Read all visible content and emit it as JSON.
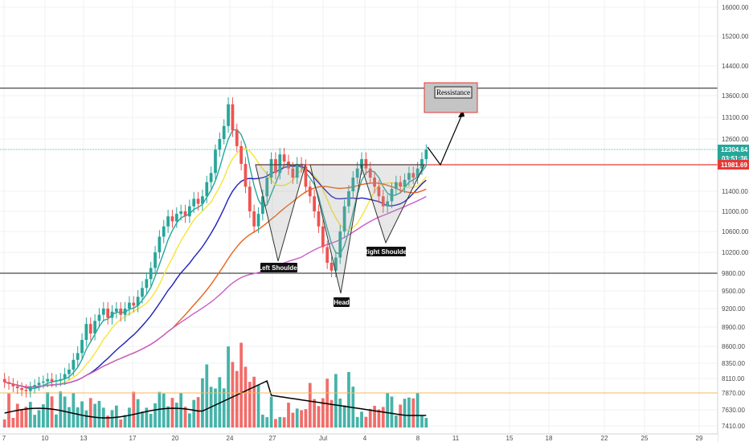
{
  "chart_data": {
    "type": "candlestick",
    "title": "",
    "y_ticks": [
      16000,
      15200,
      14400,
      13600,
      13100,
      12600,
      12304.64,
      11981.69,
      11400,
      11000,
      10600,
      10200,
      9800,
      9500,
      9200,
      8900,
      8600,
      8350,
      8110,
      7870,
      7630,
      7410
    ],
    "y_tick_labels": [
      "16000.00",
      "15200.00",
      "14400.00",
      "13600.00",
      "13100.00",
      "12600.00",
      "12304.64",
      "11981.69",
      "11400.00",
      "11000.00",
      "10600.00",
      "10200.00",
      "9800.00",
      "9500.00",
      "9200.00",
      "8900.00",
      "8600.00",
      "8350.00",
      "8110.00",
      "7870.00",
      "7630.00",
      "7410.00"
    ],
    "x_tick_labels": [
      "7",
      "10",
      "13",
      "17",
      "20",
      "24",
      "27",
      "Jul",
      "4",
      "8",
      "11",
      "15",
      "18",
      "22",
      "25",
      "29"
    ],
    "last_price": "12304.64",
    "countdown": "03:51:36",
    "resistance_price": "11981.69",
    "horizontal_levels": [
      13800,
      9800,
      7870,
      12304.64,
      11981.69
    ],
    "series": [
      {
        "name": "",
        "color": "#26a69a"
      },
      {
        "name": "",
        "color": "#f7e437"
      },
      {
        "name": "",
        "color": "#1f1fbf"
      },
      {
        "name": "",
        "color": "#e8621a"
      },
      {
        "name": "",
        "color": "#c85ec8"
      }
    ],
    "annotations": {
      "left_shoulder": "Left Shoulder",
      "head": "Head",
      "right_shoulder": "Right Shoulder",
      "resistance": "Ressistance"
    },
    "colors": {
      "up": "#26a69a",
      "down": "#ef5350",
      "last_price_tag": "#26a69a",
      "resistance_tag": "#e53935"
    }
  }
}
